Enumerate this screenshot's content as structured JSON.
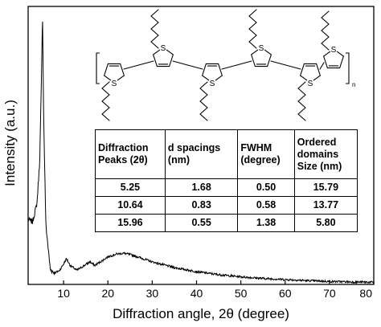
{
  "chart_data": {
    "type": "line",
    "xlabel": "Diffraction angle, 2θ (degree)",
    "ylabel": "Intensity (a.u.)",
    "xlim": [
      2,
      80
    ],
    "xticks": [
      "10",
      "20",
      "30",
      "40",
      "50",
      "60",
      "70",
      "80"
    ],
    "y_ticks_labeled": false,
    "series": [
      {
        "x": [
          2,
          3,
          4,
          4.6,
          5.0,
          5.25,
          5.5,
          6.0,
          7,
          8,
          9,
          10,
          10.64,
          11.5,
          13,
          14.5,
          15.96,
          17,
          18.5,
          20,
          22,
          23.5,
          25,
          27,
          30,
          35,
          40,
          45,
          50,
          55,
          60,
          65,
          70,
          75,
          80
        ],
        "y": [
          0.24,
          0.23,
          0.3,
          0.45,
          0.75,
          1.0,
          0.62,
          0.22,
          0.055,
          0.042,
          0.05,
          0.075,
          0.095,
          0.07,
          0.052,
          0.068,
          0.083,
          0.07,
          0.085,
          0.102,
          0.112,
          0.115,
          0.11,
          0.1,
          0.083,
          0.062,
          0.047,
          0.036,
          0.028,
          0.022,
          0.018,
          0.014,
          0.011,
          0.009,
          0.008
        ]
      }
    ]
  },
  "table": {
    "headers": [
      [
        "Diffraction",
        "Peaks (2θ)"
      ],
      [
        "d spacings",
        "(nm)"
      ],
      [
        "FWHM",
        "(degree)"
      ],
      [
        "Ordered",
        "domains",
        "Size (nm)"
      ]
    ],
    "rows": [
      [
        "5.25",
        "1.68",
        "0.50",
        "15.79"
      ],
      [
        "10.64",
        "0.83",
        "0.58",
        "13.77"
      ],
      [
        "15.96",
        "0.55",
        "1.38",
        "5.80"
      ]
    ]
  },
  "structure": {
    "ring_atom_label": "S",
    "end_subscript": "n"
  }
}
